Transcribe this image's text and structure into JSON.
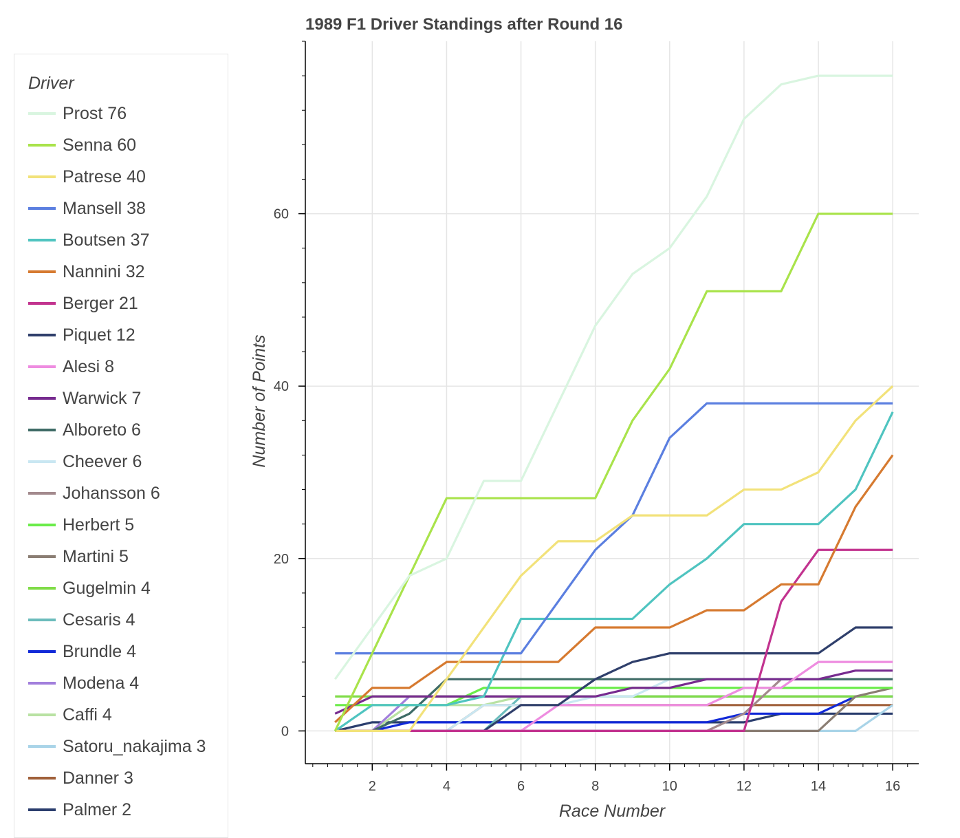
{
  "chart_data": {
    "type": "line",
    "title": "1989 F1 Driver Standings after Round 16",
    "xlabel": "Race Number",
    "ylabel": "Number of Points",
    "legend_title": "Driver",
    "legend_position": "left",
    "xlim": [
      0.2,
      16.7
    ],
    "ylim": [
      -3.8,
      80
    ],
    "xticks": [
      2,
      4,
      6,
      8,
      10,
      12,
      14,
      16
    ],
    "yticks": [
      0,
      20,
      40,
      60
    ],
    "grid": true,
    "x": [
      1,
      2,
      3,
      4,
      5,
      6,
      7,
      8,
      9,
      10,
      11,
      12,
      13,
      14,
      15,
      16
    ],
    "series": [
      {
        "name": "Prost 76",
        "color": "#d9f5e0",
        "values": [
          6,
          12,
          18,
          20,
          29,
          29,
          38,
          47,
          53,
          56,
          62,
          71,
          75,
          76,
          76,
          76
        ]
      },
      {
        "name": "Senna 60",
        "color": "#a9e34b",
        "values": [
          0,
          9,
          18,
          27,
          27,
          27,
          27,
          27,
          36,
          42,
          51,
          51,
          51,
          60,
          60,
          60
        ]
      },
      {
        "name": "Patrese 40",
        "color": "#f2e27a",
        "values": [
          0,
          0,
          0,
          6,
          12,
          18,
          22,
          22,
          25,
          25,
          25,
          28,
          28,
          30,
          36,
          40
        ]
      },
      {
        "name": "Mansell 38",
        "color": "#5b7fe0",
        "values": [
          9,
          9,
          9,
          9,
          9,
          9,
          15,
          21,
          25,
          34,
          38,
          38,
          38,
          38,
          38,
          38
        ]
      },
      {
        "name": "Boutsen 37",
        "color": "#4fc4c0",
        "values": [
          0,
          3,
          3,
          3,
          4,
          13,
          13,
          13,
          13,
          17,
          20,
          24,
          24,
          24,
          28,
          37
        ]
      },
      {
        "name": "Nannini 32",
        "color": "#d67a30",
        "values": [
          1,
          5,
          5,
          8,
          8,
          8,
          8,
          12,
          12,
          12,
          14,
          14,
          17,
          17,
          26,
          32
        ]
      },
      {
        "name": "Berger 21",
        "color": "#c2338f",
        "values": [
          0,
          0,
          0,
          0,
          0,
          0,
          0,
          0,
          0,
          0,
          0,
          0,
          15,
          21,
          21,
          21
        ]
      },
      {
        "name": "Piquet 12",
        "color": "#2f3f6b",
        "values": [
          0,
          0,
          0,
          0,
          0,
          3,
          3,
          6,
          8,
          9,
          9,
          9,
          9,
          9,
          12,
          12
        ]
      },
      {
        "name": "Alesi 8",
        "color": "#ee8ce0",
        "values": [
          0,
          0,
          0,
          0,
          0,
          0,
          3,
          3,
          3,
          3,
          3,
          5,
          5,
          8,
          8,
          8
        ]
      },
      {
        "name": "Warwick 7",
        "color": "#772b8f",
        "values": [
          2,
          4,
          4,
          4,
          4,
          4,
          4,
          4,
          5,
          5,
          6,
          6,
          6,
          6,
          7,
          7
        ]
      },
      {
        "name": "Alboreto 6",
        "color": "#3e6b66",
        "values": [
          0,
          0,
          2,
          6,
          6,
          6,
          6,
          6,
          6,
          6,
          6,
          6,
          6,
          6,
          6,
          6
        ]
      },
      {
        "name": "Cheever 6",
        "color": "#c9e7f2",
        "values": [
          0,
          0,
          0,
          0,
          3,
          3,
          3,
          4,
          4,
          6,
          6,
          6,
          6,
          6,
          6,
          6
        ]
      },
      {
        "name": "Johansson 6",
        "color": "#a38a8d",
        "values": [
          0,
          0,
          0,
          0,
          0,
          0,
          0,
          0,
          0,
          0,
          0,
          2,
          6,
          6,
          6,
          6
        ]
      },
      {
        "name": "Herbert 5",
        "color": "#6bec4a",
        "values": [
          3,
          3,
          3,
          3,
          5,
          5,
          5,
          5,
          5,
          5,
          5,
          5,
          5,
          5,
          5,
          5
        ]
      },
      {
        "name": "Martini 5",
        "color": "#8a7d73",
        "values": [
          0,
          0,
          0,
          0,
          0,
          0,
          0,
          0,
          0,
          0,
          0,
          0,
          0,
          0,
          4,
          5
        ]
      },
      {
        "name": "Gugelmin 4",
        "color": "#80dc48",
        "values": [
          4,
          4,
          4,
          4,
          4,
          4,
          4,
          4,
          4,
          4,
          4,
          4,
          4,
          4,
          4,
          4
        ]
      },
      {
        "name": "Cesaris 4",
        "color": "#6bbcbc",
        "values": [
          0,
          0,
          0,
          0,
          0,
          4,
          4,
          4,
          4,
          4,
          4,
          4,
          4,
          4,
          4,
          4
        ]
      },
      {
        "name": "Brundle 4",
        "color": "#1129d8",
        "values": [
          0,
          0,
          1,
          1,
          1,
          1,
          1,
          1,
          1,
          1,
          1,
          2,
          2,
          2,
          4,
          4
        ]
      },
      {
        "name": "Modena 4",
        "color": "#a27fdc",
        "values": [
          0,
          0,
          4,
          4,
          4,
          4,
          4,
          4,
          4,
          4,
          4,
          4,
          4,
          4,
          4,
          4
        ]
      },
      {
        "name": "Caffi 4",
        "color": "#b9e2a3",
        "values": [
          0,
          0,
          3,
          3,
          3,
          4,
          4,
          4,
          4,
          4,
          4,
          4,
          4,
          4,
          4,
          4
        ]
      },
      {
        "name": "Satoru_nakajima 3",
        "color": "#a9d4e8",
        "values": [
          0,
          0,
          0,
          0,
          0,
          0,
          0,
          0,
          0,
          0,
          0,
          0,
          0,
          0,
          0,
          3
        ]
      },
      {
        "name": "Danner 3",
        "color": "#a0603a",
        "values": [
          0,
          0,
          0,
          0,
          3,
          3,
          3,
          3,
          3,
          3,
          3,
          3,
          3,
          3,
          3,
          3
        ]
      },
      {
        "name": "Palmer 2",
        "color": "#2b3e6e",
        "values": [
          0,
          1,
          1,
          1,
          1,
          1,
          1,
          1,
          1,
          1,
          1,
          1,
          2,
          2,
          2,
          2
        ]
      }
    ]
  }
}
